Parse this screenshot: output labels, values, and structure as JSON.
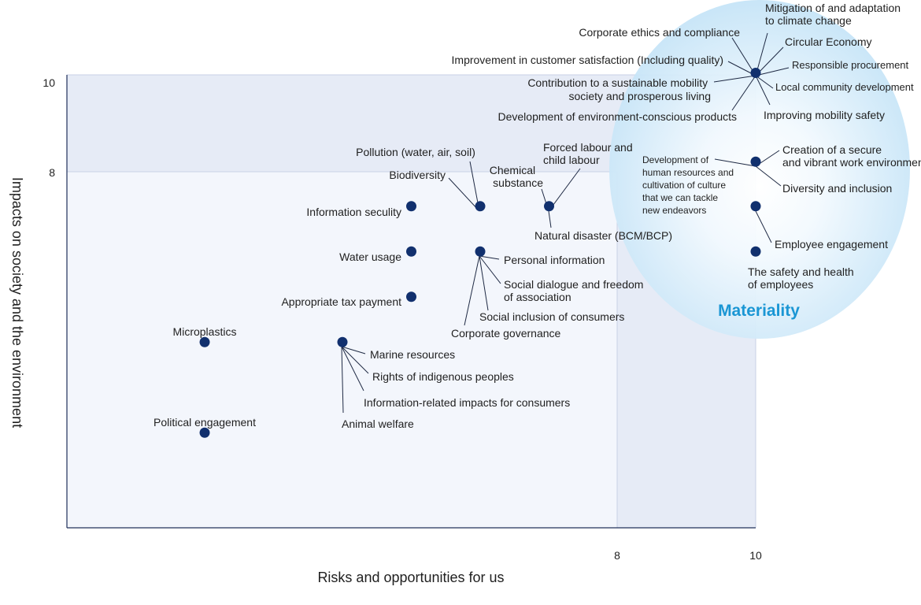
{
  "chart_data": {
    "type": "scatter",
    "title": "",
    "xlabel": "Risks and opportunities for us",
    "ylabel": "Impacts on society and the environment",
    "xlim": [
      0,
      10
    ],
    "ylim": [
      0,
      10
    ],
    "xticks": [
      "8",
      "10"
    ],
    "yticks": [
      "8",
      "10"
    ],
    "grid": false,
    "highlight_label": "Materiality",
    "colors": {
      "point": "#11306e",
      "materiality_text": "#1a96d4",
      "materiality_fill": "#c9e6f7",
      "high_band": "#e6ebf6",
      "plot_bg": "#f3f6fc",
      "axis": "#20305a"
    },
    "points": [
      {
        "id": "p-top",
        "x": 10,
        "y": 10.1,
        "labels": [
          "Mitigation of and adaptation to climate change",
          "Circular Economy",
          "Responsible procurement",
          "Local community development",
          "Improving mobility safety",
          "Development of environment-conscious products",
          "Contribution to a sustainable mobility society and prosperous living",
          "Improvement in customer satisfaction (Including quality)",
          "Corporate ethics and compliance"
        ]
      },
      {
        "id": "p-work",
        "x": 10,
        "y": 8.1,
        "labels": [
          "Creation of a secure and vibrant work environment",
          "Diversity and inclusion",
          "Development of human resources and cultivation of culture that we can tackle new endeavors"
        ]
      },
      {
        "id": "p-engage",
        "x": 10,
        "y": 7.1,
        "labels": [
          "Employee engagement"
        ]
      },
      {
        "id": "p-safety",
        "x": 10,
        "y": 6.1,
        "labels": [
          "The safety and health of employees"
        ]
      },
      {
        "id": "p-infosec",
        "x": 5,
        "y": 7.1,
        "labels": [
          "Information seculity"
        ]
      },
      {
        "id": "p-pollution",
        "x": 6,
        "y": 7.1,
        "labels": [
          "Pollution (water, air, soil)",
          "Biodiversity"
        ]
      },
      {
        "id": "p-chem",
        "x": 7,
        "y": 7.1,
        "labels": [
          "Forced labour and child labour",
          "Chemical substance",
          "Natural disaster (BCM/BCP)"
        ]
      },
      {
        "id": "p-water",
        "x": 5,
        "y": 6.1,
        "labels": [
          "Water usage"
        ]
      },
      {
        "id": "p-personal",
        "x": 6,
        "y": 6.1,
        "labels": [
          "Personal information",
          "Social dialogue and freedom of association",
          "Social inclusion of consumers",
          "Corporate governance"
        ]
      },
      {
        "id": "p-tax",
        "x": 5,
        "y": 5.1,
        "labels": [
          "Appropriate tax payment"
        ]
      },
      {
        "id": "p-micro",
        "x": 2,
        "y": 4.1,
        "labels": [
          "Microplastics"
        ]
      },
      {
        "id": "p-marine",
        "x": 4,
        "y": 4.1,
        "labels": [
          "Marine resources",
          "Rights of indigenous peoples",
          "Information-related impacts for consumers",
          "Animal welfare"
        ]
      },
      {
        "id": "p-political",
        "x": 2,
        "y": 2.1,
        "labels": [
          "Political engagement"
        ]
      }
    ]
  }
}
